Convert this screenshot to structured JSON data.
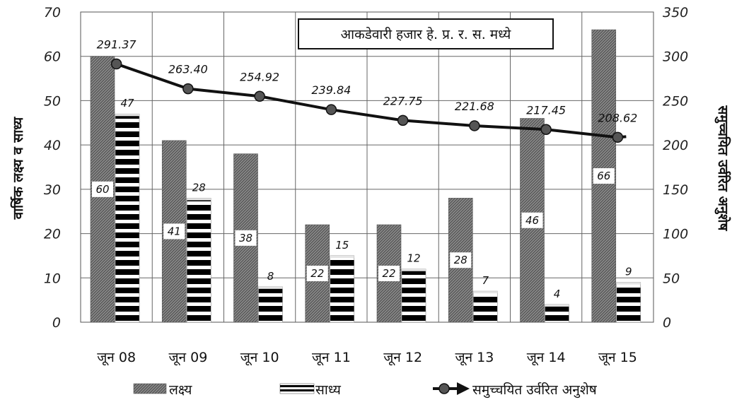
{
  "chart_data": {
    "type": "bar",
    "title": "",
    "unit_note": "आकडेवारी हजार हे. प्र. र. स. मध्ये",
    "categories": [
      "जून 08",
      "जून 09",
      "जून 10",
      "जून 11",
      "जून 12",
      "जून 13",
      "जून 14",
      "जून 15"
    ],
    "ylabel": "वार्षिक लक्ष्य व साध्य",
    "ylabel_right": "समुच्चयित उर्वरित अनुशेष",
    "ylim": [
      0,
      70
    ],
    "yticks": [
      0,
      10,
      20,
      30,
      40,
      50,
      60,
      70
    ],
    "ylim_right": [
      0,
      350
    ],
    "yticks_right": [
      0,
      50,
      100,
      150,
      200,
      250,
      300,
      350
    ],
    "grid": true,
    "legend_position": "bottom",
    "series": [
      {
        "name": "लक्ष्य",
        "type": "bar",
        "axis": "left",
        "values": [
          60,
          41,
          38,
          22,
          22,
          28,
          46,
          66
        ],
        "color": "#777777"
      },
      {
        "name": "साध्य",
        "type": "bar",
        "axis": "left",
        "values": [
          47,
          28,
          8,
          15,
          12,
          7,
          4,
          9
        ],
        "color": "#000000"
      },
      {
        "name": "समुच्चयित उर्वरित अनुशेष",
        "type": "line",
        "axis": "right",
        "values": [
          291.37,
          263.4,
          254.92,
          239.84,
          227.75,
          221.68,
          217.45,
          208.62
        ],
        "labels": [
          "291.37",
          "263.40",
          "254.92",
          "239.84",
          "227.75",
          "221.68",
          "217.45",
          "208.62"
        ],
        "color": "#111111"
      }
    ]
  }
}
